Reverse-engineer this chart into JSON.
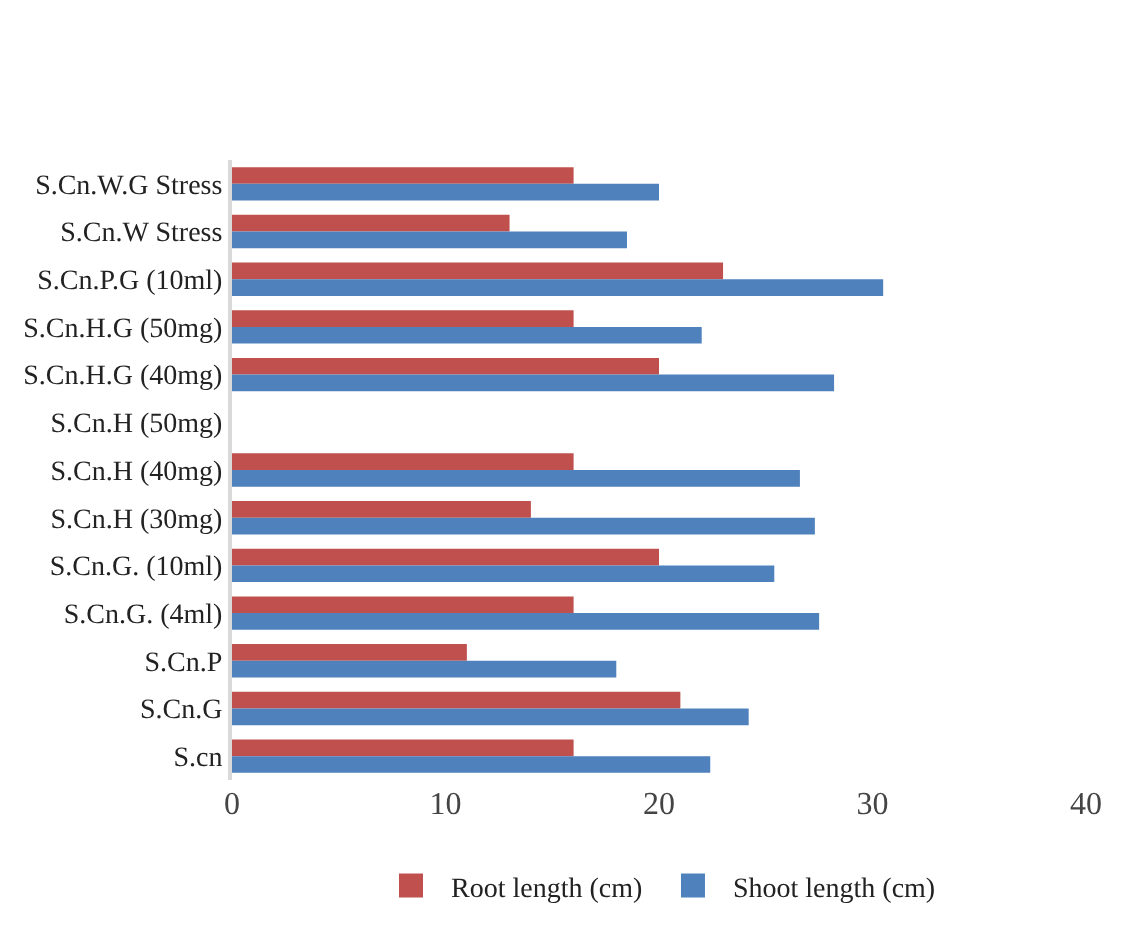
{
  "chart_data": {
    "type": "bar",
    "orientation": "horizontal",
    "categories": [
      "S.Cn.W.G Stress",
      "S.Cn.W Stress",
      "S.Cn.P.G (10ml)",
      "S.Cn.H.G (50mg)",
      "S.Cn.H.G (40mg)",
      "S.Cn.H (50mg)",
      "S.Cn.H (40mg)",
      "S.Cn.H (30mg)",
      "S.Cn.G. (10ml)",
      "S.Cn.G. (4ml)",
      "S.Cn.P",
      "S.Cn.G",
      "S.cn"
    ],
    "series": [
      {
        "name": "Root length (cm)",
        "color": "#c0504d",
        "values": [
          16,
          13,
          23,
          16,
          20,
          null,
          16,
          14,
          20,
          16,
          11,
          21,
          16
        ]
      },
      {
        "name": "Shoot length (cm)",
        "color": "#4f81bd",
        "values": [
          20,
          18.5,
          30.5,
          22,
          28.2,
          null,
          26.6,
          27.3,
          25.4,
          27.5,
          18,
          24.2,
          22.4
        ]
      }
    ],
    "xlim": [
      0,
      40
    ],
    "xticks": [
      0,
      10,
      20,
      30,
      40
    ],
    "grid": false,
    "legend": "bottom"
  }
}
